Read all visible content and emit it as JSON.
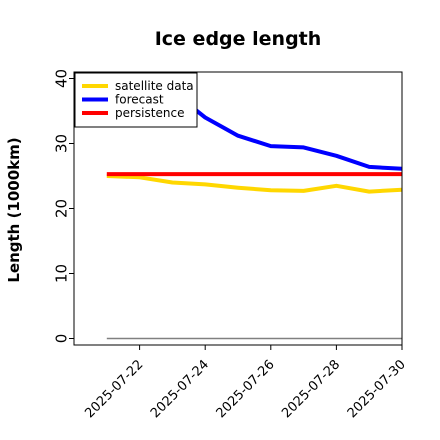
{
  "chart_data": {
    "type": "line",
    "title": "Ice edge length",
    "xlabel": "",
    "ylabel": "Length (1000km)",
    "x": [
      "2025-07-21",
      "2025-07-22",
      "2025-07-23",
      "2025-07-24",
      "2025-07-25",
      "2025-07-26",
      "2025-07-27",
      "2025-07-28",
      "2025-07-29",
      "2025-07-30"
    ],
    "xticks": [
      "2025-07-22",
      "2025-07-24",
      "2025-07-26",
      "2025-07-28",
      "2025-07-30"
    ],
    "xtick_colors": [
      "#228B22",
      "#000000",
      "#000000",
      "#000000",
      "#000000"
    ],
    "xlim": [
      "2025-07-20",
      "2025-07-30"
    ],
    "ylim": [
      -1,
      41
    ],
    "yticks": [
      0,
      10,
      20,
      30,
      40
    ],
    "legend_position": "upper-left",
    "grid": false,
    "series": [
      {
        "name": "satellite data",
        "color": "#FFD700",
        "values": [
          25.0,
          24.8,
          24.0,
          23.7,
          23.2,
          22.8,
          22.7,
          23.5,
          22.6,
          22.9
        ]
      },
      {
        "name": "forecast",
        "color": "#0000FF",
        "values": [
          33.2,
          38.2,
          38.0,
          34.0,
          31.2,
          29.6,
          29.4,
          28.1,
          26.4,
          26.1
        ]
      },
      {
        "name": "persistence",
        "color": "#FF0000",
        "values": [
          25.3,
          25.3,
          25.3,
          25.3,
          25.3,
          25.3,
          25.3,
          25.3,
          25.3,
          25.3
        ]
      }
    ],
    "baseline": {
      "value": 0,
      "color": "#808080"
    }
  }
}
